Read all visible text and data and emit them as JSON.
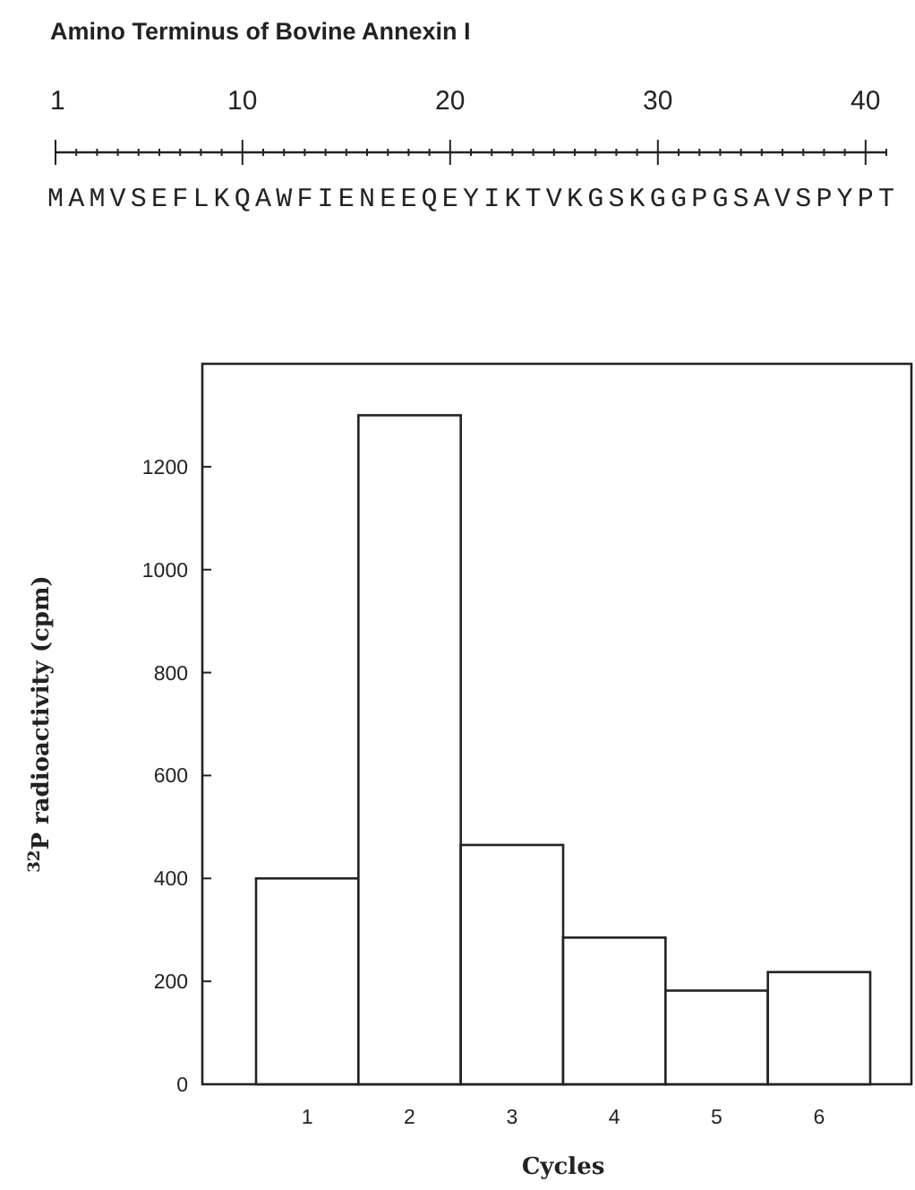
{
  "chart_data": {
    "type": "bar",
    "title": "Amino Terminus of Bovine Annexin I",
    "annotations": [
      "1",
      "10",
      "20",
      "30",
      "40",
      "MAMVSEFLKQAWFIENEEQEYIKTVKGSKGGPGSAVSPYPT"
    ],
    "categories": [
      "1",
      "2",
      "3",
      "4",
      "5",
      "6"
    ],
    "values": [
      400,
      1300,
      465,
      285,
      182,
      218
    ],
    "color": "#ffffff",
    "xlabel": "Cycles",
    "ylabel": "$^{32}$P radioactivity (cpm)",
    "ylim": [
      0,
      1400
    ],
    "yticks": [
      0,
      200,
      400,
      600,
      800,
      1000,
      1200
    ],
    "grid": false
  }
}
